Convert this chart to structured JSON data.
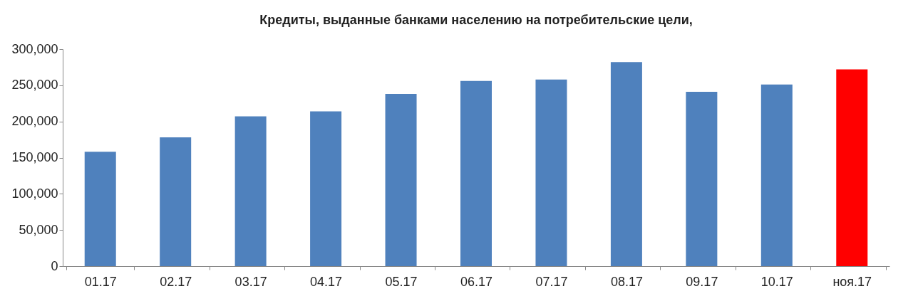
{
  "chart_data": {
    "type": "bar",
    "title": "Кредиты, выданные банками населению на потребительские цели,",
    "categories": [
      "01.17",
      "02.17",
      "03.17",
      "04.17",
      "05.17",
      "06.17",
      "07.17",
      "08.17",
      "09.17",
      "10.17",
      "ноя.17"
    ],
    "values": [
      158000,
      178000,
      207000,
      214000,
      238000,
      256000,
      258000,
      282000,
      241000,
      251000,
      272000
    ],
    "colors": [
      "#4f81bd",
      "#4f81bd",
      "#4f81bd",
      "#4f81bd",
      "#4f81bd",
      "#4f81bd",
      "#4f81bd",
      "#4f81bd",
      "#4f81bd",
      "#4f81bd",
      "#ff0000"
    ],
    "ylim": [
      0,
      300000
    ],
    "yticks": [
      {
        "value": 0,
        "label": "0"
      },
      {
        "value": 50000,
        "label": "50,000"
      },
      {
        "value": 100000,
        "label": "100,000"
      },
      {
        "value": 150000,
        "label": "150,000"
      },
      {
        "value": 200000,
        "label": "200,000"
      },
      {
        "value": 250000,
        "label": "250,000"
      },
      {
        "value": 300000,
        "label": "300,000"
      }
    ],
    "grid": false
  }
}
